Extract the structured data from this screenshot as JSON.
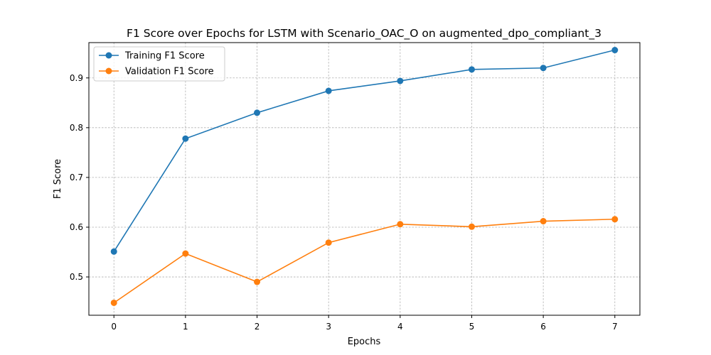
{
  "chart_data": {
    "type": "line",
    "title": "F1 Score over Epochs for LSTM with Scenario_OAC_O on augmented_dpo_compliant_3",
    "xlabel": "Epochs",
    "ylabel": "F1 Score",
    "x": [
      0,
      1,
      2,
      3,
      4,
      5,
      6,
      7
    ],
    "xticks": [
      "0",
      "1",
      "2",
      "3",
      "4",
      "5",
      "6",
      "7"
    ],
    "yticks": [
      "0.5",
      "0.6",
      "0.7",
      "0.8",
      "0.9"
    ],
    "xlim": [
      -0.35,
      7.35
    ],
    "ylim": [
      0.423,
      0.971
    ],
    "grid": true,
    "legend_position": "upper-left",
    "series": [
      {
        "name": "Training F1 Score",
        "color": "#1f77b4",
        "marker": "circle",
        "values": [
          0.551,
          0.778,
          0.83,
          0.874,
          0.894,
          0.917,
          0.92,
          0.956
        ]
      },
      {
        "name": "Validation F1 Score",
        "color": "#ff7f0e",
        "marker": "circle",
        "values": [
          0.448,
          0.547,
          0.49,
          0.569,
          0.606,
          0.601,
          0.612,
          0.616
        ]
      }
    ]
  }
}
